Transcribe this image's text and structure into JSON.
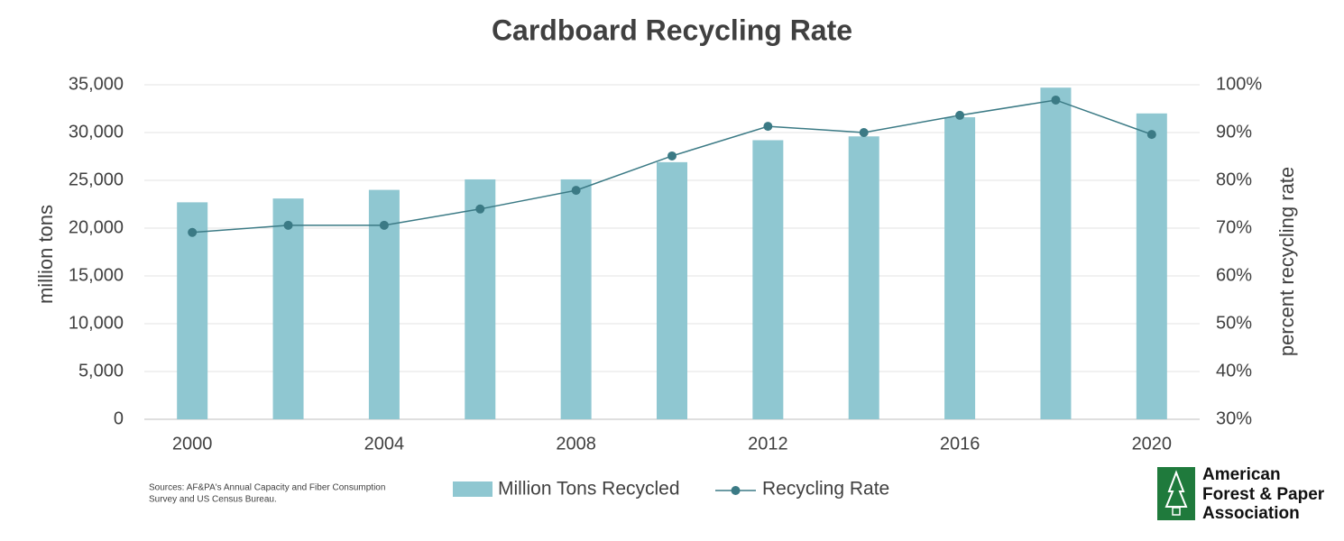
{
  "chart_data": {
    "type": "bar",
    "title": "Cardboard Recycling Rate",
    "x": [
      2000,
      2002,
      2004,
      2006,
      2008,
      2010,
      2012,
      2014,
      2016,
      2018,
      2020
    ],
    "xlim": [
      1999,
      2021
    ],
    "xticks": [
      2000,
      2004,
      2008,
      2012,
      2016,
      2020
    ],
    "y_label": "million tons",
    "y2_label": "percent recycling rate",
    "ylim": [
      0,
      35000
    ],
    "yticks": [
      0,
      {
        "value": 5000,
        "label": "5,000"
      },
      {
        "value": 10000,
        "label": "10,000"
      },
      {
        "value": 15000,
        "label": "15,000"
      },
      {
        "value": 20000,
        "label": "20,000"
      },
      {
        "value": 25000,
        "label": "25,000"
      },
      {
        "value": 30000,
        "label": "30,000"
      },
      {
        "value": 35000,
        "label": "35,000"
      }
    ],
    "y2lim": [
      30,
      100
    ],
    "y2ticks": [
      {
        "value": 30,
        "label": "30%"
      },
      {
        "value": 40,
        "label": "40%"
      },
      {
        "value": 50,
        "label": "50%"
      },
      {
        "value": 60,
        "label": "60%"
      },
      {
        "value": 70,
        "label": "70%"
      },
      {
        "value": 80,
        "label": "80%"
      },
      {
        "value": 90,
        "label": "90%"
      },
      {
        "value": 100,
        "label": "100%"
      }
    ],
    "grid": true,
    "series": [
      {
        "name": "Million Tons Recycled",
        "type": "bar",
        "color": "#8fc7d1",
        "values": [
          22700,
          23100,
          24000,
          25100,
          25100,
          26900,
          29200,
          29600,
          31600,
          34700,
          32000
        ]
      },
      {
        "name": "Recycling Rate",
        "type": "line",
        "axis": "y2",
        "color": "#3b7a85",
        "values": [
          69.1,
          70.6,
          70.6,
          74.0,
          77.9,
          85.1,
          91.3,
          90.0,
          93.6,
          96.8,
          89.6
        ]
      }
    ],
    "source": [
      "Sources: AF&PA's Annual Capacity and Fiber Consumption",
      "Survey and US Census Bureau."
    ]
  },
  "logo": {
    "lines": [
      "American",
      "Forest & Paper",
      "Association"
    ]
  }
}
